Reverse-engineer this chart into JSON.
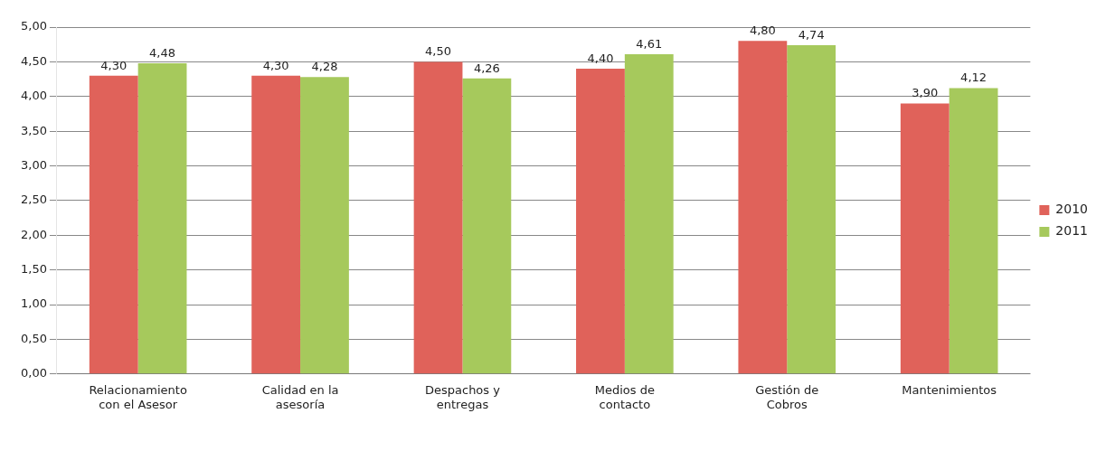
{
  "chart_data": {
    "type": "bar",
    "categories": [
      "Relacionamiento con el Asesor",
      "Calidad en la asesoría",
      "Despachos y entregas",
      "Medios de contacto",
      "Gestión de Cobros",
      "Mantenimientos"
    ],
    "series": [
      {
        "name": "2010",
        "color": "#e0625a",
        "values": [
          4.3,
          4.3,
          4.5,
          4.4,
          4.8,
          3.9
        ],
        "value_labels": [
          "4,30",
          "4,30",
          "4,50",
          "4,40",
          "4,80",
          "3,90"
        ]
      },
      {
        "name": "2011",
        "color": "#a6c95c",
        "values": [
          4.48,
          4.28,
          4.26,
          4.61,
          4.74,
          4.12
        ],
        "value_labels": [
          "4,48",
          "4,28",
          "4,26",
          "4,61",
          "4,74",
          "4,12"
        ]
      }
    ],
    "ylim": [
      0,
      5
    ],
    "yticks": [
      {
        "value": 0,
        "label": "0,00"
      },
      {
        "value": 0.5,
        "label": "0,50"
      },
      {
        "value": 1,
        "label": "1,00"
      },
      {
        "value": 1.5,
        "label": "1,50"
      },
      {
        "value": 2,
        "label": "2,00"
      },
      {
        "value": 2.5,
        "label": "2,50"
      },
      {
        "value": 3,
        "label": "3,00"
      },
      {
        "value": 3.5,
        "label": "3,50"
      },
      {
        "value": 4,
        "label": "4,00"
      },
      {
        "value": 4.5,
        "label": "4,50"
      },
      {
        "value": 5,
        "label": "5,00"
      }
    ],
    "grid": "y",
    "legend": "right"
  }
}
